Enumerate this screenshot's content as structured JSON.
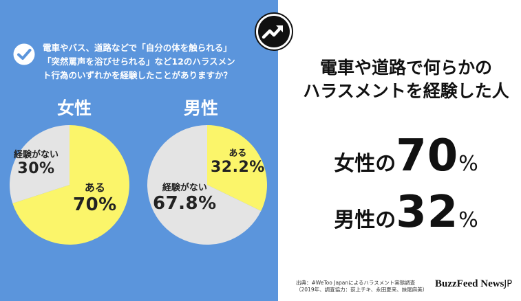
{
  "question": {
    "lines": [
      "電車やバス、道路などで「自分の体を触られる」",
      "「突然罵声を浴びせられる」など12のハラスメン",
      "ト行為のいずれかを経験したことがありますか？"
    ]
  },
  "colors": {
    "panel": "#5b95dc",
    "yes": "#fbf56a",
    "no": "#e4e4e4"
  },
  "headline": {
    "line1": "電車や道路で何らかの",
    "line2": "ハラスメントを経験した人"
  },
  "stats": {
    "female": {
      "prefix": "女性の",
      "value": "70",
      "unit": "%"
    },
    "male": {
      "prefix": "男性の",
      "value": "32",
      "unit": "%"
    }
  },
  "source": {
    "line1": "出典：#WeToo Japanによるハラスメント実態調査",
    "line2": "（2019年、調査協力：荻上チキ、永田夏来、妹尾麻美）"
  },
  "brand": {
    "name": "BuzzFeed News",
    "suffix": "JP"
  },
  "chart_data": [
    {
      "type": "pie",
      "title": "女性",
      "slices": [
        {
          "label": "ある",
          "value": 70,
          "display": "70%"
        },
        {
          "label": "経験がない",
          "value": 30,
          "display": "30%"
        }
      ]
    },
    {
      "type": "pie",
      "title": "男性",
      "slices": [
        {
          "label": "ある",
          "value": 32.2,
          "display": "32.2%"
        },
        {
          "label": "経験がない",
          "value": 67.8,
          "display": "67.8%"
        }
      ]
    }
  ]
}
